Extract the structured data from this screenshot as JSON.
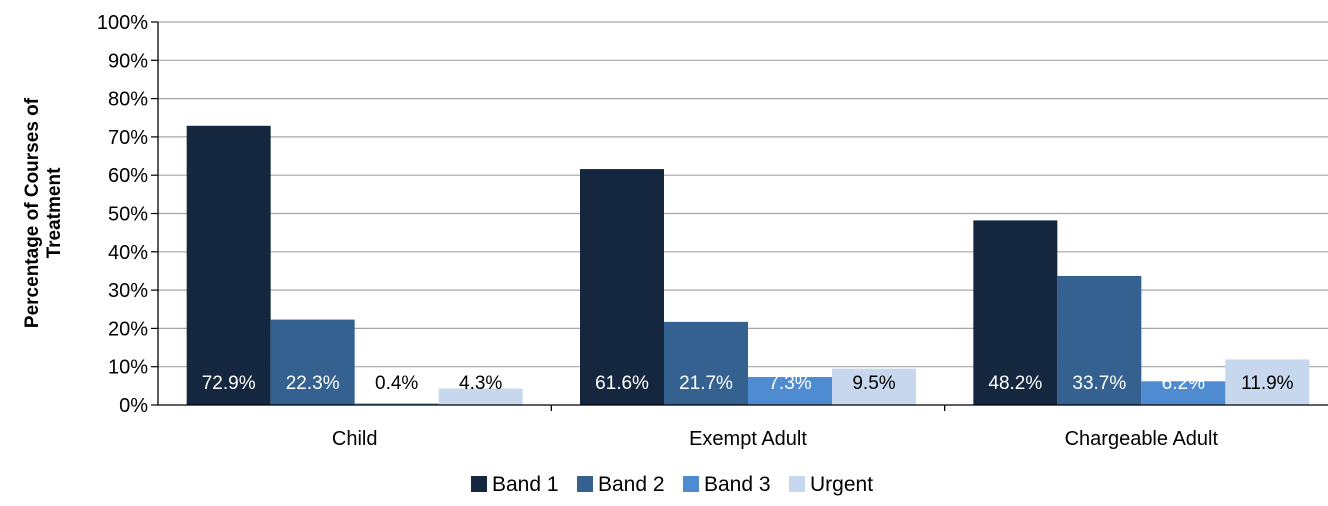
{
  "chart_data": {
    "type": "bar",
    "ylabel_lines": [
      "Percentage of Courses of",
      "Treatment"
    ],
    "categories": [
      "Child",
      "Exempt Adult",
      "Chargeable Adult"
    ],
    "series": [
      {
        "name": "Band 1",
        "color": "#14273f",
        "values": [
          72.9,
          61.6,
          48.2
        ],
        "labels": [
          "72.9%",
          "61.6%",
          "48.2%"
        ]
      },
      {
        "name": "Band 2",
        "color": "#356191",
        "values": [
          22.3,
          21.7,
          33.7
        ],
        "labels": [
          "22.3%",
          "21.7%",
          "33.7%"
        ]
      },
      {
        "name": "Band 3",
        "color": "#4f8bd0",
        "values": [
          0.4,
          7.3,
          6.2
        ],
        "labels": [
          "0.4%",
          "7.3%",
          "6.2%"
        ]
      },
      {
        "name": "Urgent",
        "color": "#c7d8ee",
        "values": [
          4.3,
          9.5,
          11.9
        ],
        "labels": [
          "4.3%",
          "9.5%",
          "11.9%"
        ]
      }
    ],
    "ylim": [
      0,
      100
    ],
    "yticks": [
      "0%",
      "10%",
      "20%",
      "30%",
      "40%",
      "50%",
      "60%",
      "70%",
      "80%",
      "90%",
      "100%"
    ],
    "grid": true,
    "legend_position": "bottom-center"
  }
}
